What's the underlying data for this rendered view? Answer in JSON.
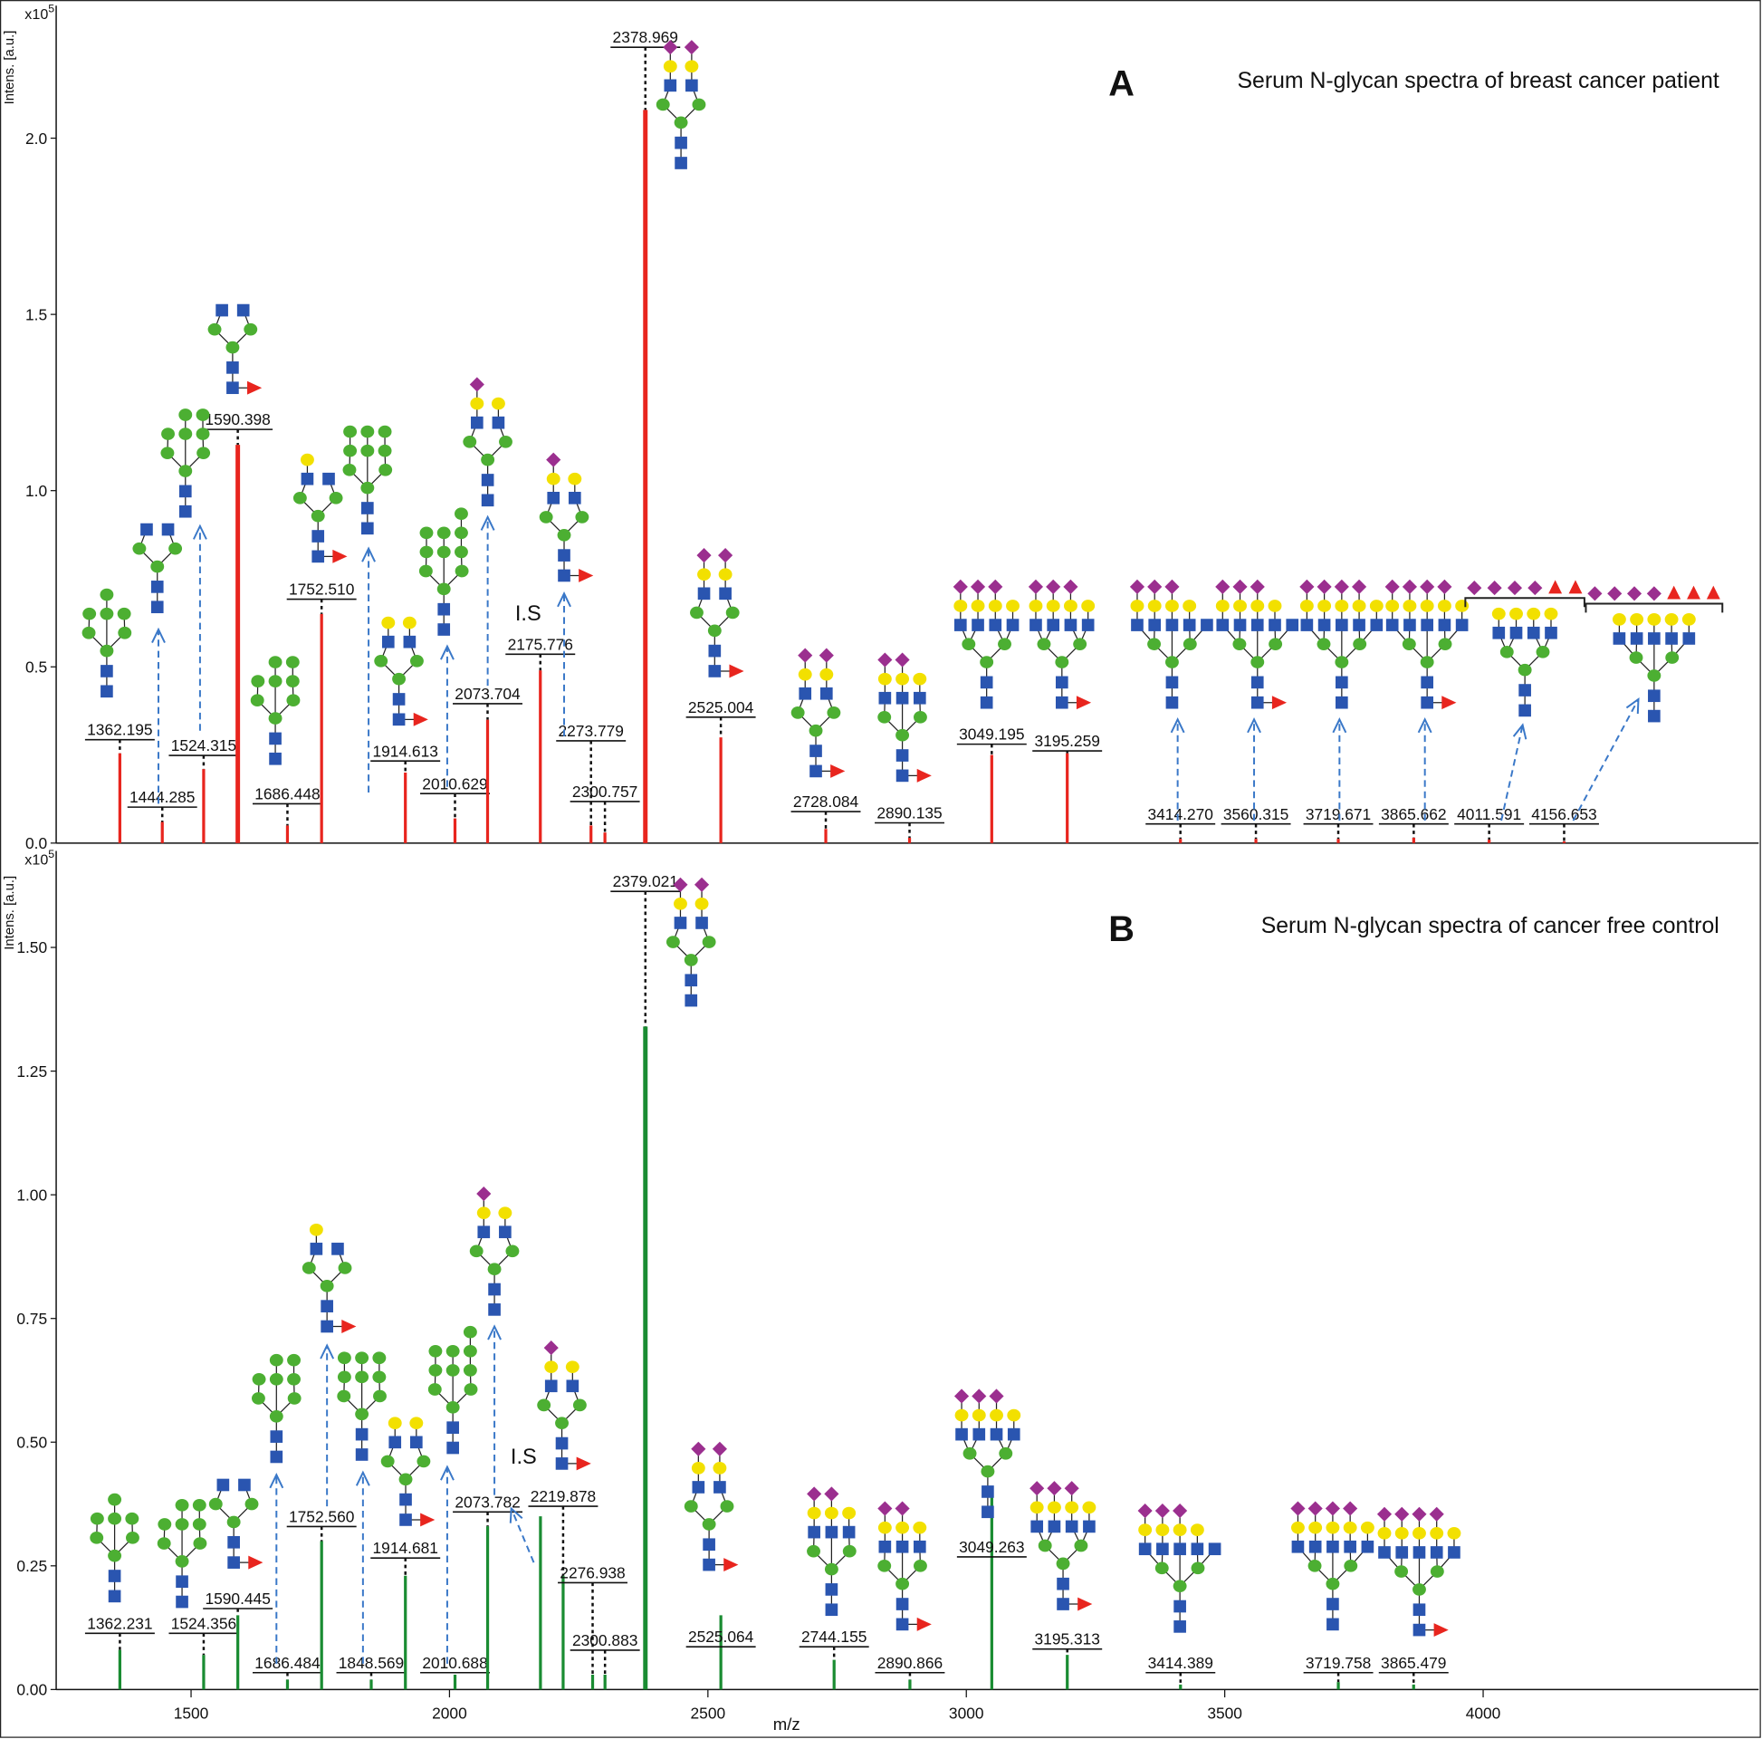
{
  "chart_data": [
    {
      "type": "spectrum",
      "panel_label": "A",
      "title": "Serum N-glycan spectra of breast cancer patient",
      "y_label": "Intens. [a.u.]",
      "y_multiplier": "x10",
      "y_multiplier_exponent": "5",
      "annotations": [
        "I.S"
      ],
      "color": "#e8251e",
      "xlim": [
        1239,
        4533
      ],
      "ylim": [
        0,
        2.376
      ],
      "yticks": [
        {
          "value": 0,
          "label": "0.0"
        },
        0.5,
        {
          "value": 1,
          "label": "1.0"
        },
        1.5,
        {
          "value": 2,
          "label": "2.0"
        }
      ],
      "x": [
        1362.195,
        1444.285,
        1524.315,
        1590.398,
        1686.448,
        1752.51,
        1914.613,
        2010.629,
        2073.704,
        2175.776,
        2273.779,
        2300.757,
        2378.969,
        2525.004,
        2728.084,
        2890.135,
        3049.195,
        3195.259,
        3414.27,
        3560.315,
        3719.671,
        3865.662,
        4011.591,
        4156.653
      ],
      "peak_labels": [
        "1362.195",
        "1444.285",
        "1524.315",
        "1590.398",
        "1686.448",
        "1752.510",
        "1914.613",
        "2010.629",
        "2073.704",
        "2175.776",
        "2273.779",
        "2300.757",
        "2378.969",
        "2525.004",
        "2728.084",
        "2890.135",
        "3049.195",
        "3195.259",
        "3414.270",
        "3560.315",
        "3719.671",
        "3865.662",
        "4011.591",
        "4156.653"
      ],
      "values": [
        0.255,
        0.06,
        0.21,
        1.13,
        0.05,
        0.65,
        0.2,
        0.07,
        0.35,
        0.49,
        0.05,
        0.03,
        2.08,
        0.3,
        0.04,
        0.015,
        0.25,
        0.255,
        0.012,
        0.012,
        0.012,
        0.015,
        0.01,
        0.005
      ]
    },
    {
      "type": "spectrum",
      "panel_label": "B",
      "title": "Serum N-glycan spectra of cancer free control",
      "y_label": "Intens. [a.u.]",
      "y_multiplier": "x10",
      "y_multiplier_exponent": "5",
      "x_label": "m/z",
      "annotations": [
        "I.S"
      ],
      "color": "#1a8c32",
      "xlim": [
        1239,
        4533
      ],
      "ylim": [
        0,
        1.695
      ],
      "xticks": [
        1500,
        2000,
        2500,
        3000,
        3500,
        4000
      ],
      "yticks": [
        {
          "value": 0,
          "label": "0.00"
        },
        0.25,
        {
          "value": 0.5,
          "label": "0.50"
        },
        0.75,
        {
          "value": 1,
          "label": "1.00"
        },
        1.25,
        {
          "value": 1.5,
          "label": "1.50"
        }
      ],
      "x": [
        1362.231,
        1524.356,
        1590.445,
        1686.484,
        1752.56,
        1848.569,
        1914.681,
        2010.688,
        2073.782,
        2176,
        2219.878,
        2276.938,
        2300.883,
        2379.021,
        2525.064,
        2744.155,
        2890.866,
        3049.263,
        3195.313,
        3414.389,
        3719.758,
        3865.479
      ],
      "peak_labels": [
        "1362.231",
        "1524.356",
        "1590.445",
        "1686.484",
        "1752.560",
        "1848.569",
        "1914.681",
        "2010.688",
        "2073.782",
        null,
        "2219.878",
        "2276.938",
        "2300.883",
        "2379.021",
        "2525.064",
        "2744.155",
        "2890.866",
        "3049.263",
        "3195.313",
        "3414.389",
        "3719.758",
        "3865.479"
      ],
      "values": [
        0.08,
        0.07,
        0.15,
        0.02,
        0.3,
        0.02,
        0.23,
        0.03,
        0.33,
        0.35,
        0.23,
        0.03,
        0.03,
        1.34,
        0.15,
        0.06,
        0.02,
        0.4,
        0.07,
        0.01,
        0.015,
        0.01
      ]
    }
  ]
}
